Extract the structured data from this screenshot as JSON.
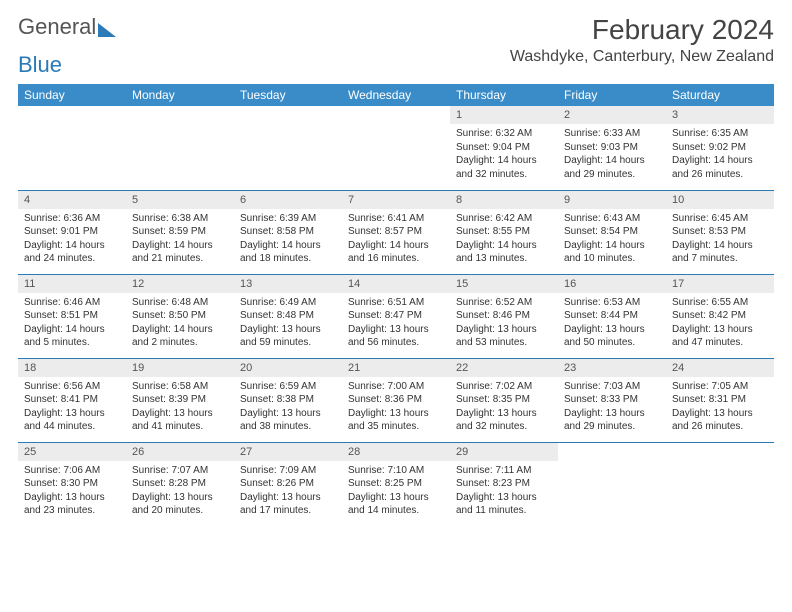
{
  "brand": {
    "part1": "General",
    "part2": "Blue"
  },
  "title": "February 2024",
  "location": "Washdyke, Canterbury, New Zealand",
  "colors": {
    "header_bg": "#3a8cc9",
    "row_divider": "#2a7ab8",
    "daynum_bg": "#ececec",
    "text": "#333333",
    "background": "#ffffff"
  },
  "fonts": {
    "title_size_pt": 21,
    "location_size_pt": 12,
    "dayhead_size_pt": 9,
    "daynum_size_pt": 8,
    "body_size_pt": 7.5
  },
  "day_headers": [
    "Sunday",
    "Monday",
    "Tuesday",
    "Wednesday",
    "Thursday",
    "Friday",
    "Saturday"
  ],
  "weeks": [
    [
      {
        "empty": true
      },
      {
        "empty": true
      },
      {
        "empty": true
      },
      {
        "empty": true
      },
      {
        "num": "1",
        "sunrise": "6:32 AM",
        "sunset": "9:04 PM",
        "dl1": "Daylight: 14 hours",
        "dl2": "and 32 minutes."
      },
      {
        "num": "2",
        "sunrise": "6:33 AM",
        "sunset": "9:03 PM",
        "dl1": "Daylight: 14 hours",
        "dl2": "and 29 minutes."
      },
      {
        "num": "3",
        "sunrise": "6:35 AM",
        "sunset": "9:02 PM",
        "dl1": "Daylight: 14 hours",
        "dl2": "and 26 minutes."
      }
    ],
    [
      {
        "num": "4",
        "sunrise": "6:36 AM",
        "sunset": "9:01 PM",
        "dl1": "Daylight: 14 hours",
        "dl2": "and 24 minutes."
      },
      {
        "num": "5",
        "sunrise": "6:38 AM",
        "sunset": "8:59 PM",
        "dl1": "Daylight: 14 hours",
        "dl2": "and 21 minutes."
      },
      {
        "num": "6",
        "sunrise": "6:39 AM",
        "sunset": "8:58 PM",
        "dl1": "Daylight: 14 hours",
        "dl2": "and 18 minutes."
      },
      {
        "num": "7",
        "sunrise": "6:41 AM",
        "sunset": "8:57 PM",
        "dl1": "Daylight: 14 hours",
        "dl2": "and 16 minutes."
      },
      {
        "num": "8",
        "sunrise": "6:42 AM",
        "sunset": "8:55 PM",
        "dl1": "Daylight: 14 hours",
        "dl2": "and 13 minutes."
      },
      {
        "num": "9",
        "sunrise": "6:43 AM",
        "sunset": "8:54 PM",
        "dl1": "Daylight: 14 hours",
        "dl2": "and 10 minutes."
      },
      {
        "num": "10",
        "sunrise": "6:45 AM",
        "sunset": "8:53 PM",
        "dl1": "Daylight: 14 hours",
        "dl2": "and 7 minutes."
      }
    ],
    [
      {
        "num": "11",
        "sunrise": "6:46 AM",
        "sunset": "8:51 PM",
        "dl1": "Daylight: 14 hours",
        "dl2": "and 5 minutes."
      },
      {
        "num": "12",
        "sunrise": "6:48 AM",
        "sunset": "8:50 PM",
        "dl1": "Daylight: 14 hours",
        "dl2": "and 2 minutes."
      },
      {
        "num": "13",
        "sunrise": "6:49 AM",
        "sunset": "8:48 PM",
        "dl1": "Daylight: 13 hours",
        "dl2": "and 59 minutes."
      },
      {
        "num": "14",
        "sunrise": "6:51 AM",
        "sunset": "8:47 PM",
        "dl1": "Daylight: 13 hours",
        "dl2": "and 56 minutes."
      },
      {
        "num": "15",
        "sunrise": "6:52 AM",
        "sunset": "8:46 PM",
        "dl1": "Daylight: 13 hours",
        "dl2": "and 53 minutes."
      },
      {
        "num": "16",
        "sunrise": "6:53 AM",
        "sunset": "8:44 PM",
        "dl1": "Daylight: 13 hours",
        "dl2": "and 50 minutes."
      },
      {
        "num": "17",
        "sunrise": "6:55 AM",
        "sunset": "8:42 PM",
        "dl1": "Daylight: 13 hours",
        "dl2": "and 47 minutes."
      }
    ],
    [
      {
        "num": "18",
        "sunrise": "6:56 AM",
        "sunset": "8:41 PM",
        "dl1": "Daylight: 13 hours",
        "dl2": "and 44 minutes."
      },
      {
        "num": "19",
        "sunrise": "6:58 AM",
        "sunset": "8:39 PM",
        "dl1": "Daylight: 13 hours",
        "dl2": "and 41 minutes."
      },
      {
        "num": "20",
        "sunrise": "6:59 AM",
        "sunset": "8:38 PM",
        "dl1": "Daylight: 13 hours",
        "dl2": "and 38 minutes."
      },
      {
        "num": "21",
        "sunrise": "7:00 AM",
        "sunset": "8:36 PM",
        "dl1": "Daylight: 13 hours",
        "dl2": "and 35 minutes."
      },
      {
        "num": "22",
        "sunrise": "7:02 AM",
        "sunset": "8:35 PM",
        "dl1": "Daylight: 13 hours",
        "dl2": "and 32 minutes."
      },
      {
        "num": "23",
        "sunrise": "7:03 AM",
        "sunset": "8:33 PM",
        "dl1": "Daylight: 13 hours",
        "dl2": "and 29 minutes."
      },
      {
        "num": "24",
        "sunrise": "7:05 AM",
        "sunset": "8:31 PM",
        "dl1": "Daylight: 13 hours",
        "dl2": "and 26 minutes."
      }
    ],
    [
      {
        "num": "25",
        "sunrise": "7:06 AM",
        "sunset": "8:30 PM",
        "dl1": "Daylight: 13 hours",
        "dl2": "and 23 minutes."
      },
      {
        "num": "26",
        "sunrise": "7:07 AM",
        "sunset": "8:28 PM",
        "dl1": "Daylight: 13 hours",
        "dl2": "and 20 minutes."
      },
      {
        "num": "27",
        "sunrise": "7:09 AM",
        "sunset": "8:26 PM",
        "dl1": "Daylight: 13 hours",
        "dl2": "and 17 minutes."
      },
      {
        "num": "28",
        "sunrise": "7:10 AM",
        "sunset": "8:25 PM",
        "dl1": "Daylight: 13 hours",
        "dl2": "and 14 minutes."
      },
      {
        "num": "29",
        "sunrise": "7:11 AM",
        "sunset": "8:23 PM",
        "dl1": "Daylight: 13 hours",
        "dl2": "and 11 minutes."
      },
      {
        "empty": true
      },
      {
        "empty": true
      }
    ]
  ],
  "labels": {
    "sunrise_prefix": "Sunrise: ",
    "sunset_prefix": "Sunset: "
  }
}
